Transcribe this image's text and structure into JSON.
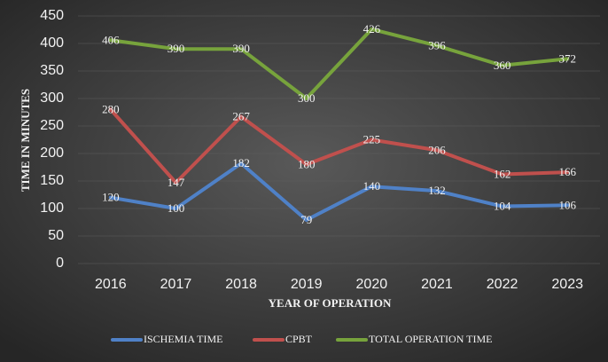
{
  "chart_data": {
    "type": "line",
    "categories": [
      "2016",
      "2017",
      "2018",
      "2019",
      "2020",
      "2021",
      "2022",
      "2023"
    ],
    "series": [
      {
        "name": "ISCHEMIA TIME",
        "color": "#4f81c7",
        "values": [
          120,
          100,
          182,
          79,
          140,
          132,
          104,
          106
        ]
      },
      {
        "name": "CPBT",
        "color": "#c0504d",
        "values": [
          280,
          147,
          267,
          180,
          225,
          206,
          162,
          166
        ]
      },
      {
        "name": "TOTAL OPERATION TIME",
        "color": "#77a33c",
        "values": [
          406,
          390,
          390,
          300,
          426,
          396,
          360,
          372
        ]
      }
    ],
    "ylim": [
      0,
      450
    ],
    "yticks": [
      0,
      50,
      100,
      150,
      200,
      250,
      300,
      350,
      400,
      450
    ],
    "xlabel": "YEAR OF OPERATION",
    "ylabel": "TIME IN MINUTES",
    "grid": true,
    "legend": "bottom"
  }
}
